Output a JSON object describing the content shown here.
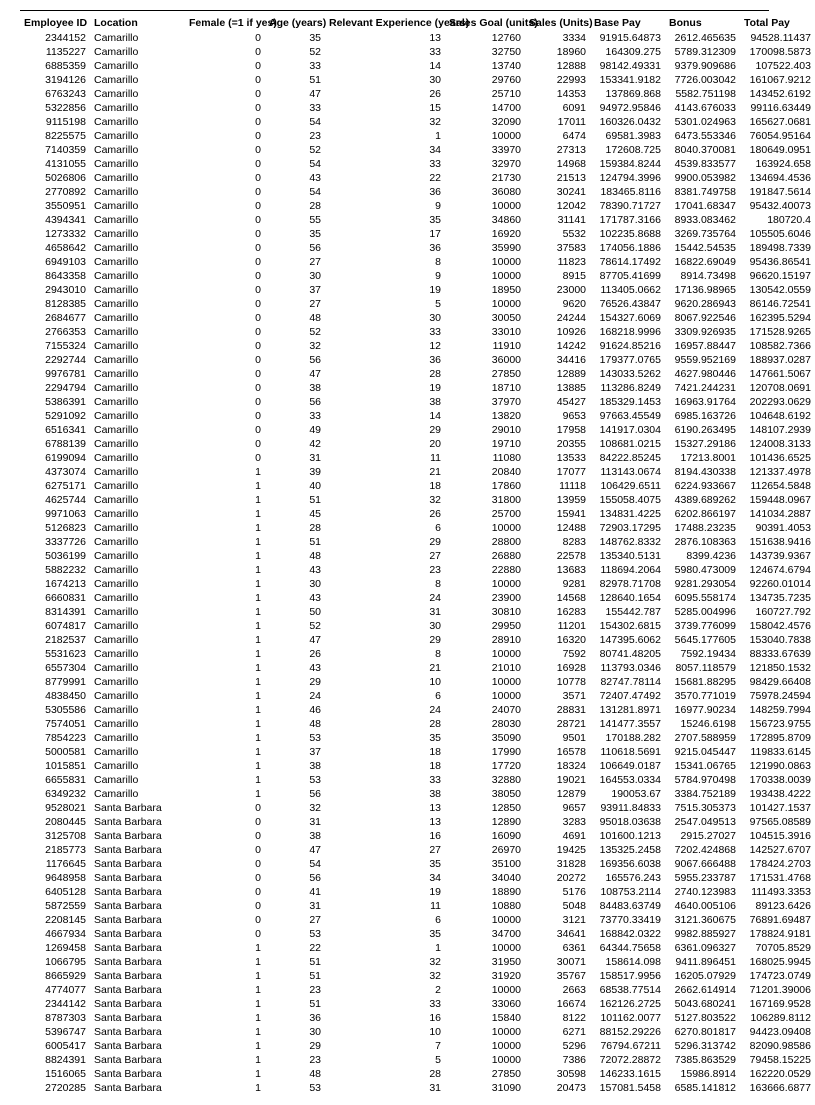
{
  "table": {
    "columns": [
      {
        "key": "emp",
        "label": "Employee ID",
        "align": "r",
        "header_align": "l"
      },
      {
        "key": "loc",
        "label": "Location",
        "align": "l",
        "header_align": "l"
      },
      {
        "key": "fem",
        "label": "Female (=1 if yes)",
        "align": "r",
        "header_align": "l"
      },
      {
        "key": "age",
        "label": "Age (years)",
        "align": "r",
        "header_align": "l"
      },
      {
        "key": "exp",
        "label": "Relevant Experience (years)",
        "align": "r",
        "header_align": "l"
      },
      {
        "key": "goal",
        "label": "Sales Goal (units)",
        "align": "r",
        "header_align": "l"
      },
      {
        "key": "sales",
        "label": "Sales (Units)",
        "align": "r",
        "header_align": "l"
      },
      {
        "key": "base",
        "label": "Base Pay",
        "align": "r",
        "header_align": "l"
      },
      {
        "key": "bonus",
        "label": "Bonus",
        "align": "r",
        "header_align": "l"
      },
      {
        "key": "total",
        "label": "Total Pay",
        "align": "r",
        "header_align": "l"
      }
    ],
    "rows": [
      [
        "2344152",
        "Camarillo",
        "0",
        "35",
        "13",
        "12760",
        "3334",
        "91915.64873",
        "2612.465635",
        "94528.11437"
      ],
      [
        "1135227",
        "Camarillo",
        "0",
        "52",
        "33",
        "32750",
        "18960",
        "164309.275",
        "5789.312309",
        "170098.5873"
      ],
      [
        "6885359",
        "Camarillo",
        "0",
        "33",
        "14",
        "13740",
        "12888",
        "98142.49331",
        "9379.909686",
        "107522.403"
      ],
      [
        "3194126",
        "Camarillo",
        "0",
        "51",
        "30",
        "29760",
        "22993",
        "153341.9182",
        "7726.003042",
        "161067.9212"
      ],
      [
        "6763243",
        "Camarillo",
        "0",
        "47",
        "26",
        "25710",
        "14353",
        "137869.868",
        "5582.751198",
        "143452.6192"
      ],
      [
        "5322856",
        "Camarillo",
        "0",
        "33",
        "15",
        "14700",
        "6091",
        "94972.95846",
        "4143.676033",
        "99116.63449"
      ],
      [
        "9115198",
        "Camarillo",
        "0",
        "54",
        "32",
        "32090",
        "17011",
        "160326.0432",
        "5301.024963",
        "165627.0681"
      ],
      [
        "8225575",
        "Camarillo",
        "0",
        "23",
        "1",
        "10000",
        "6474",
        "69581.3983",
        "6473.553346",
        "76054.95164"
      ],
      [
        "7140359",
        "Camarillo",
        "0",
        "52",
        "34",
        "33970",
        "27313",
        "172608.725",
        "8040.370081",
        "180649.0951"
      ],
      [
        "4131055",
        "Camarillo",
        "0",
        "54",
        "33",
        "32970",
        "14968",
        "159384.8244",
        "4539.833577",
        "163924.658"
      ],
      [
        "5026806",
        "Camarillo",
        "0",
        "43",
        "22",
        "21730",
        "21513",
        "124794.3996",
        "9900.053982",
        "134694.4536"
      ],
      [
        "2770892",
        "Camarillo",
        "0",
        "54",
        "36",
        "36080",
        "30241",
        "183465.8116",
        "8381.749758",
        "191847.5614"
      ],
      [
        "3550951",
        "Camarillo",
        "0",
        "28",
        "9",
        "10000",
        "12042",
        "78390.71727",
        "17041.68347",
        "95432.40073"
      ],
      [
        "4394341",
        "Camarillo",
        "0",
        "55",
        "35",
        "34860",
        "31141",
        "171787.3166",
        "8933.083462",
        "180720.4"
      ],
      [
        "1273332",
        "Camarillo",
        "0",
        "35",
        "17",
        "16920",
        "5532",
        "102235.8688",
        "3269.735764",
        "105505.6046"
      ],
      [
        "4658642",
        "Camarillo",
        "0",
        "56",
        "36",
        "35990",
        "37583",
        "174056.1886",
        "15442.54535",
        "189498.7339"
      ],
      [
        "6949103",
        "Camarillo",
        "0",
        "27",
        "8",
        "10000",
        "11823",
        "78614.17492",
        "16822.69049",
        "95436.86541"
      ],
      [
        "8643358",
        "Camarillo",
        "0",
        "30",
        "9",
        "10000",
        "8915",
        "87705.41699",
        "8914.73498",
        "96620.15197"
      ],
      [
        "2943010",
        "Camarillo",
        "0",
        "37",
        "19",
        "18950",
        "23000",
        "113405.0662",
        "17136.98965",
        "130542.0559"
      ],
      [
        "8128385",
        "Camarillo",
        "0",
        "27",
        "5",
        "10000",
        "9620",
        "76526.43847",
        "9620.286943",
        "86146.72541"
      ],
      [
        "2684677",
        "Camarillo",
        "0",
        "48",
        "30",
        "30050",
        "24244",
        "154327.6069",
        "8067.922546",
        "162395.5294"
      ],
      [
        "2766353",
        "Camarillo",
        "0",
        "52",
        "33",
        "33010",
        "10926",
        "168218.9996",
        "3309.926935",
        "171528.9265"
      ],
      [
        "7155324",
        "Camarillo",
        "0",
        "32",
        "12",
        "11910",
        "14242",
        "91624.85216",
        "16957.88447",
        "108582.7366"
      ],
      [
        "2292744",
        "Camarillo",
        "0",
        "56",
        "36",
        "36000",
        "34416",
        "179377.0765",
        "9559.952169",
        "188937.0287"
      ],
      [
        "9976781",
        "Camarillo",
        "0",
        "47",
        "28",
        "27850",
        "12889",
        "143033.5262",
        "4627.980446",
        "147661.5067"
      ],
      [
        "2294794",
        "Camarillo",
        "0",
        "38",
        "19",
        "18710",
        "13885",
        "113286.8249",
        "7421.244231",
        "120708.0691"
      ],
      [
        "5386391",
        "Camarillo",
        "0",
        "56",
        "38",
        "37970",
        "45427",
        "185329.1453",
        "16963.91764",
        "202293.0629"
      ],
      [
        "5291092",
        "Camarillo",
        "0",
        "33",
        "14",
        "13820",
        "9653",
        "97663.45549",
        "6985.163726",
        "104648.6192"
      ],
      [
        "6516341",
        "Camarillo",
        "0",
        "49",
        "29",
        "29010",
        "17958",
        "141917.0304",
        "6190.263495",
        "148107.2939"
      ],
      [
        "6788139",
        "Camarillo",
        "0",
        "42",
        "20",
        "19710",
        "20355",
        "108681.0215",
        "15327.29186",
        "124008.3133"
      ],
      [
        "6199094",
        "Camarillo",
        "0",
        "31",
        "11",
        "11080",
        "13533",
        "84222.85245",
        "17213.8001",
        "101436.6525"
      ],
      [
        "4373074",
        "Camarillo",
        "1",
        "39",
        "21",
        "20840",
        "17077",
        "113143.0674",
        "8194.430338",
        "121337.4978"
      ],
      [
        "6275171",
        "Camarillo",
        "1",
        "40",
        "18",
        "17860",
        "11118",
        "106429.6511",
        "6224.933667",
        "112654.5848"
      ],
      [
        "4625744",
        "Camarillo",
        "1",
        "51",
        "32",
        "31800",
        "13959",
        "155058.4075",
        "4389.689262",
        "159448.0967"
      ],
      [
        "9971063",
        "Camarillo",
        "1",
        "45",
        "26",
        "25700",
        "15941",
        "134831.4225",
        "6202.866197",
        "141034.2887"
      ],
      [
        "5126823",
        "Camarillo",
        "1",
        "28",
        "6",
        "10000",
        "12488",
        "72903.17295",
        "17488.23235",
        "90391.4053"
      ],
      [
        "3337726",
        "Camarillo",
        "1",
        "51",
        "29",
        "28800",
        "8283",
        "148762.8332",
        "2876.108363",
        "151638.9416"
      ],
      [
        "5036199",
        "Camarillo",
        "1",
        "48",
        "27",
        "26880",
        "22578",
        "135340.5131",
        "8399.4236",
        "143739.9367"
      ],
      [
        "5882232",
        "Camarillo",
        "1",
        "43",
        "23",
        "22880",
        "13683",
        "118694.2064",
        "5980.473009",
        "124674.6794"
      ],
      [
        "1674213",
        "Camarillo",
        "1",
        "30",
        "8",
        "10000",
        "9281",
        "82978.71708",
        "9281.293054",
        "92260.01014"
      ],
      [
        "6660831",
        "Camarillo",
        "1",
        "43",
        "24",
        "23900",
        "14568",
        "128640.1654",
        "6095.558174",
        "134735.7235"
      ],
      [
        "8314391",
        "Camarillo",
        "1",
        "50",
        "31",
        "30810",
        "16283",
        "155442.787",
        "5285.004996",
        "160727.792"
      ],
      [
        "6074817",
        "Camarillo",
        "1",
        "52",
        "30",
        "29950",
        "11201",
        "154302.6815",
        "3739.776099",
        "158042.4576"
      ],
      [
        "2182537",
        "Camarillo",
        "1",
        "47",
        "29",
        "28910",
        "16320",
        "147395.6062",
        "5645.177605",
        "153040.7838"
      ],
      [
        "5531623",
        "Camarillo",
        "1",
        "26",
        "8",
        "10000",
        "7592",
        "80741.48205",
        "7592.19434",
        "88333.67639"
      ],
      [
        "6557304",
        "Camarillo",
        "1",
        "43",
        "21",
        "21010",
        "16928",
        "113793.0346",
        "8057.118579",
        "121850.1532"
      ],
      [
        "8779991",
        "Camarillo",
        "1",
        "29",
        "10",
        "10000",
        "10778",
        "82747.78114",
        "15681.88295",
        "98429.66408"
      ],
      [
        "4838450",
        "Camarillo",
        "1",
        "24",
        "6",
        "10000",
        "3571",
        "72407.47492",
        "3570.771019",
        "75978.24594"
      ],
      [
        "5305586",
        "Camarillo",
        "1",
        "46",
        "24",
        "24070",
        "28831",
        "131281.8971",
        "16977.90234",
        "148259.7994"
      ],
      [
        "7574051",
        "Camarillo",
        "1",
        "48",
        "28",
        "28030",
        "28721",
        "141477.3557",
        "15246.6198",
        "156723.9755"
      ],
      [
        "7854223",
        "Camarillo",
        "1",
        "53",
        "35",
        "35090",
        "9501",
        "170188.282",
        "2707.588959",
        "172895.8709"
      ],
      [
        "5000581",
        "Camarillo",
        "1",
        "37",
        "18",
        "17990",
        "16578",
        "110618.5691",
        "9215.045447",
        "119833.6145"
      ],
      [
        "1015851",
        "Camarillo",
        "1",
        "38",
        "18",
        "17720",
        "18324",
        "106649.0187",
        "15341.06765",
        "121990.0863"
      ],
      [
        "6655831",
        "Camarillo",
        "1",
        "53",
        "33",
        "32880",
        "19021",
        "164553.0334",
        "5784.970498",
        "170338.0039"
      ],
      [
        "6349232",
        "Camarillo",
        "1",
        "56",
        "38",
        "38050",
        "12879",
        "190053.67",
        "3384.752189",
        "193438.4222"
      ],
      [
        "9528021",
        "Santa Barbara",
        "0",
        "32",
        "13",
        "12850",
        "9657",
        "93911.84833",
        "7515.305373",
        "101427.1537"
      ],
      [
        "2080445",
        "Santa Barbara",
        "0",
        "31",
        "13",
        "12890",
        "3283",
        "95018.03638",
        "2547.049513",
        "97565.08589"
      ],
      [
        "3125708",
        "Santa Barbara",
        "0",
        "38",
        "16",
        "16090",
        "4691",
        "101600.1213",
        "2915.27027",
        "104515.3916"
      ],
      [
        "2185773",
        "Santa Barbara",
        "0",
        "47",
        "27",
        "26970",
        "19425",
        "135325.2458",
        "7202.424868",
        "142527.6707"
      ],
      [
        "1176645",
        "Santa Barbara",
        "0",
        "54",
        "35",
        "35100",
        "31828",
        "169356.6038",
        "9067.666488",
        "178424.2703"
      ],
      [
        "9648958",
        "Santa Barbara",
        "0",
        "56",
        "34",
        "34040",
        "20272",
        "165576.243",
        "5955.233787",
        "171531.4768"
      ],
      [
        "6405128",
        "Santa Barbara",
        "0",
        "41",
        "19",
        "18890",
        "5176",
        "108753.2114",
        "2740.123983",
        "111493.3353"
      ],
      [
        "5872559",
        "Santa Barbara",
        "0",
        "31",
        "11",
        "10880",
        "5048",
        "84483.63749",
        "4640.005106",
        "89123.6426"
      ],
      [
        "2208145",
        "Santa Barbara",
        "0",
        "27",
        "6",
        "10000",
        "3121",
        "73770.33419",
        "3121.360675",
        "76891.69487"
      ],
      [
        "4667934",
        "Santa Barbara",
        "0",
        "53",
        "35",
        "34700",
        "34641",
        "168842.0322",
        "9982.885927",
        "178824.9181"
      ],
      [
        "1269458",
        "Santa Barbara",
        "1",
        "22",
        "1",
        "10000",
        "6361",
        "64344.75658",
        "6361.096327",
        "70705.8529"
      ],
      [
        "1066795",
        "Santa Barbara",
        "1",
        "51",
        "32",
        "31950",
        "30071",
        "158614.098",
        "9411.896451",
        "168025.9945"
      ],
      [
        "8665929",
        "Santa Barbara",
        "1",
        "51",
        "32",
        "31920",
        "35767",
        "158517.9956",
        "16205.07929",
        "174723.0749"
      ],
      [
        "4774077",
        "Santa Barbara",
        "1",
        "23",
        "2",
        "10000",
        "2663",
        "68538.77514",
        "2662.614914",
        "71201.39006"
      ],
      [
        "2344142",
        "Santa Barbara",
        "1",
        "51",
        "33",
        "33060",
        "16674",
        "162126.2725",
        "5043.680241",
        "167169.9528"
      ],
      [
        "8787303",
        "Santa Barbara",
        "1",
        "36",
        "16",
        "15840",
        "8122",
        "101162.0077",
        "5127.803522",
        "106289.8112"
      ],
      [
        "5396747",
        "Santa Barbara",
        "1",
        "30",
        "10",
        "10000",
        "6271",
        "88152.29226",
        "6270.801817",
        "94423.09408"
      ],
      [
        "6005417",
        "Santa Barbara",
        "1",
        "29",
        "7",
        "10000",
        "5296",
        "76794.67211",
        "5296.313742",
        "82090.98586"
      ],
      [
        "8824391",
        "Santa Barbara",
        "1",
        "23",
        "5",
        "10000",
        "7386",
        "72072.28872",
        "7385.863529",
        "79458.15225"
      ],
      [
        "1516065",
        "Santa Barbara",
        "1",
        "48",
        "28",
        "27850",
        "30598",
        "146233.1615",
        "15986.8914",
        "162220.0529"
      ],
      [
        "2720285",
        "Santa Barbara",
        "1",
        "53",
        "31",
        "31090",
        "20473",
        "157081.5458",
        "6585.141812",
        "163666.6877"
      ]
    ]
  }
}
